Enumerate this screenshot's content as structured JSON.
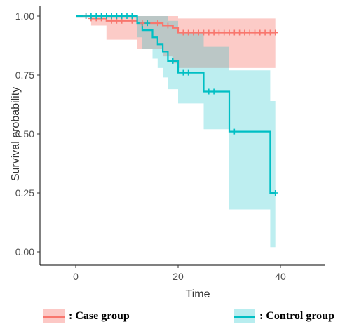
{
  "chart_data": {
    "type": "line",
    "subtype": "kaplan-meier-step",
    "xlabel": "Time",
    "ylabel": "Survival probability",
    "xlim": [
      -5,
      45
    ],
    "ylim": [
      0,
      1
    ],
    "x_ticks": [
      0,
      20,
      40
    ],
    "y_ticks": [
      0,
      0.25,
      0.5,
      0.75,
      1
    ],
    "x_tick_labels": [
      "0",
      "20",
      "40"
    ],
    "y_tick_labels": [
      "0.00",
      "0.25",
      "0.50",
      "0.75",
      "1.00"
    ],
    "grid": false,
    "series": [
      {
        "name": "Case group",
        "color": "#F8766D",
        "band_color": "#F8766D",
        "step_x": [
          0,
          3,
          6,
          12,
          17,
          19,
          20,
          39
        ],
        "step_y": [
          1.0,
          0.99,
          0.98,
          0.97,
          0.96,
          0.95,
          0.93,
          0.93
        ],
        "ci_lower": [
          1.0,
          0.96,
          0.9,
          0.86,
          0.83,
          0.8,
          0.78,
          0.78
        ],
        "ci_upper": [
          1.0,
          1.0,
          1.0,
          1.0,
          1.0,
          1.0,
          0.99,
          0.99
        ],
        "censor_x": [
          2,
          3,
          4,
          5,
          7,
          8,
          9,
          11,
          13,
          14,
          16,
          18,
          21,
          22,
          23,
          24,
          25,
          26,
          27,
          28,
          29,
          30,
          31,
          32,
          33,
          34,
          35,
          36,
          37,
          38,
          39
        ],
        "censor_y": [
          1.0,
          0.99,
          0.99,
          0.99,
          0.98,
          0.98,
          0.98,
          0.98,
          0.97,
          0.97,
          0.97,
          0.96,
          0.93,
          0.93,
          0.93,
          0.93,
          0.93,
          0.93,
          0.93,
          0.93,
          0.93,
          0.93,
          0.93,
          0.93,
          0.93,
          0.93,
          0.93,
          0.93,
          0.93,
          0.93,
          0.93
        ]
      },
      {
        "name": "Control group",
        "color": "#00BFC4",
        "band_color": "#00BFC4",
        "step_x": [
          0,
          12,
          13,
          15,
          16,
          17,
          18,
          20,
          25,
          30,
          38,
          39
        ],
        "step_y": [
          1.0,
          0.97,
          0.94,
          0.91,
          0.88,
          0.85,
          0.81,
          0.76,
          0.68,
          0.51,
          0.25,
          0.25
        ],
        "ci_lower": [
          1.0,
          0.91,
          0.86,
          0.82,
          0.78,
          0.74,
          0.69,
          0.63,
          0.52,
          0.18,
          0.02,
          0.02
        ],
        "ci_upper": [
          1.0,
          1.0,
          1.0,
          1.0,
          1.0,
          1.0,
          0.98,
          0.93,
          0.87,
          0.77,
          0.64,
          0.64
        ],
        "censor_x": [
          2,
          3,
          4,
          5,
          6,
          7,
          8,
          9,
          10,
          11,
          14,
          19,
          21,
          22,
          26,
          27,
          31,
          39
        ],
        "censor_y": [
          1.0,
          1.0,
          1.0,
          1.0,
          1.0,
          1.0,
          1.0,
          1.0,
          1.0,
          1.0,
          0.97,
          0.81,
          0.76,
          0.76,
          0.68,
          0.68,
          0.51,
          0.25
        ]
      }
    ]
  },
  "legend": {
    "case_label": ": Case group",
    "control_label": ":  Control group"
  }
}
